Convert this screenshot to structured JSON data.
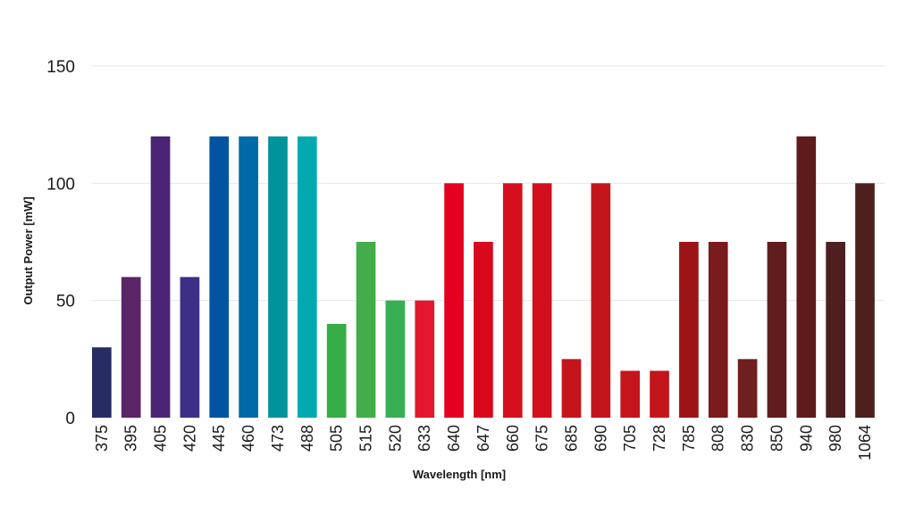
{
  "chart_data": {
    "type": "bar",
    "title": "",
    "xlabel": "Wavelength [nm]",
    "ylabel": "Output Power [mW]",
    "ylim": [
      0,
      150
    ],
    "yticks": [
      0,
      50,
      100,
      150
    ],
    "grid": true,
    "legend": "none",
    "categories": [
      "375",
      "395",
      "405",
      "420",
      "445",
      "460",
      "473",
      "488",
      "505",
      "515",
      "520",
      "633",
      "640",
      "647",
      "660",
      "675",
      "685",
      "690",
      "705",
      "728",
      "785",
      "808",
      "830",
      "850",
      "940",
      "980",
      "1064"
    ],
    "values": [
      30,
      60,
      120,
      60,
      120,
      120,
      120,
      120,
      40,
      75,
      50,
      50,
      100,
      75,
      100,
      100,
      25,
      100,
      20,
      20,
      75,
      75,
      25,
      75,
      120,
      75,
      100
    ],
    "colors": [
      "#252d64",
      "#5a2567",
      "#4b2474",
      "#3d2f86",
      "#0054a0",
      "#0069a8",
      "#00939b",
      "#00aab0",
      "#37ad47",
      "#42ad4a",
      "#3aae55",
      "#e5172e",
      "#e4001f",
      "#d9091d",
      "#d60f1c",
      "#d20f1d",
      "#c3151b",
      "#c2161c",
      "#c5161d",
      "#c3161c",
      "#9b1517",
      "#7a1b1e",
      "#6f1f20",
      "#5f1d1e",
      "#5e1b1b",
      "#4f1e1f",
      "#4b201d"
    ]
  }
}
